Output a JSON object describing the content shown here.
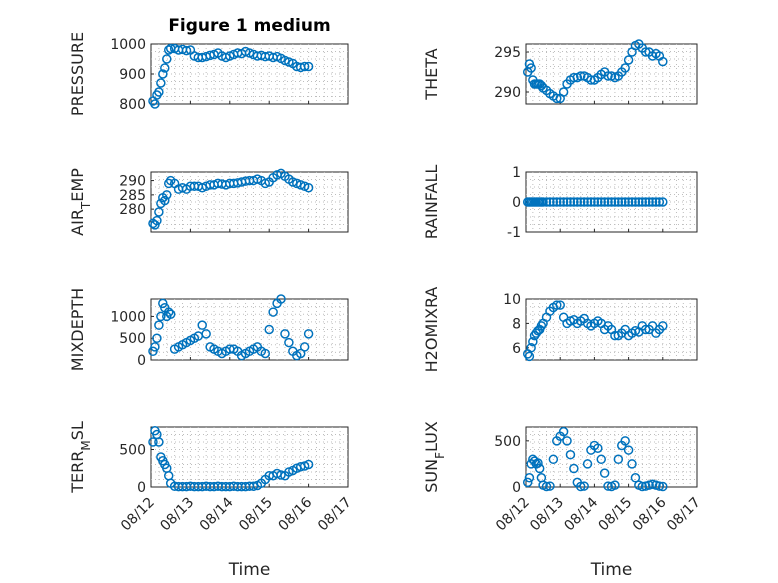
{
  "figure": {
    "title": "Figure 1 medium",
    "marker_color": "#0072BD",
    "grid": true
  },
  "chart_data": [
    {
      "type": "scatter",
      "title": "Figure 1 medium",
      "ylabel": "PRESSURE",
      "xlabel": "",
      "xlim": [
        0,
        5
      ],
      "ylim": [
        800,
        1000
      ],
      "xticks": [
        0,
        1,
        2,
        3,
        4,
        5
      ],
      "xticklabels": [],
      "yticks": [
        800,
        900,
        1000
      ],
      "yticklabels": [
        "800",
        "900",
        "1000"
      ],
      "x": [
        0.05,
        0.1,
        0.15,
        0.2,
        0.25,
        0.3,
        0.35,
        0.4,
        0.45,
        0.5,
        0.6,
        0.7,
        0.8,
        0.9,
        1.0,
        1.1,
        1.2,
        1.3,
        1.4,
        1.5,
        1.6,
        1.7,
        1.8,
        1.9,
        2.0,
        2.1,
        2.2,
        2.3,
        2.4,
        2.5,
        2.6,
        2.7,
        2.8,
        2.9,
        3.0,
        3.1,
        3.2,
        3.3,
        3.4,
        3.5,
        3.6,
        3.7,
        3.8,
        3.9,
        4.0
      ],
      "y": [
        810,
        800,
        830,
        840,
        870,
        900,
        920,
        950,
        980,
        985,
        985,
        980,
        982,
        978,
        980,
        960,
        955,
        955,
        958,
        962,
        965,
        970,
        960,
        955,
        960,
        965,
        970,
        968,
        975,
        970,
        965,
        960,
        962,
        958,
        960,
        955,
        958,
        952,
        945,
        940,
        935,
        925,
        922,
        925,
        925
      ]
    },
    {
      "type": "scatter",
      "title": "",
      "ylabel": "THETA",
      "xlabel": "",
      "xlim": [
        0,
        5
      ],
      "ylim": [
        288.5,
        296
      ],
      "xticks": [
        0,
        1,
        2,
        3,
        4,
        5
      ],
      "xticklabels": [],
      "yticks": [
        290,
        295
      ],
      "yticklabels": [
        "290",
        "295"
      ],
      "x": [
        0.05,
        0.1,
        0.15,
        0.2,
        0.25,
        0.3,
        0.35,
        0.4,
        0.45,
        0.5,
        0.6,
        0.7,
        0.8,
        0.9,
        1.0,
        1.1,
        1.2,
        1.3,
        1.4,
        1.5,
        1.6,
        1.7,
        1.8,
        1.9,
        2.0,
        2.1,
        2.2,
        2.3,
        2.4,
        2.5,
        2.6,
        2.7,
        2.8,
        2.9,
        3.0,
        3.1,
        3.2,
        3.3,
        3.4,
        3.5,
        3.6,
        3.7,
        3.8,
        3.9,
        4.0
      ],
      "y": [
        292.5,
        293.5,
        293,
        291.5,
        291,
        291,
        291,
        291,
        290.8,
        290.5,
        290.2,
        289.8,
        289.5,
        289.2,
        289.2,
        290,
        291,
        291.5,
        291.8,
        291.8,
        292,
        292,
        291.8,
        291.5,
        291.5,
        291.8,
        292.2,
        292.5,
        292,
        292,
        291.8,
        292,
        292.5,
        293,
        294,
        295,
        295.8,
        296,
        295.5,
        295,
        295,
        294.5,
        294.8,
        294.5,
        293.8
      ]
    },
    {
      "type": "scatter",
      "title": "",
      "ylabel": "AIR_TEMP",
      "xlabel": "",
      "xlim": [
        0,
        5
      ],
      "ylim": [
        272,
        293
      ],
      "xticks": [
        0,
        1,
        2,
        3,
        4,
        5
      ],
      "xticklabels": [],
      "yticks": [
        280,
        285,
        290
      ],
      "yticklabels": [
        "280",
        "285",
        "290"
      ],
      "x": [
        0.05,
        0.1,
        0.15,
        0.2,
        0.25,
        0.3,
        0.35,
        0.4,
        0.45,
        0.5,
        0.6,
        0.7,
        0.8,
        0.9,
        1.0,
        1.1,
        1.2,
        1.3,
        1.4,
        1.5,
        1.6,
        1.7,
        1.8,
        1.9,
        2.0,
        2.1,
        2.2,
        2.3,
        2.4,
        2.5,
        2.6,
        2.7,
        2.8,
        2.9,
        3.0,
        3.1,
        3.2,
        3.3,
        3.4,
        3.5,
        3.6,
        3.7,
        3.8,
        3.9,
        4.0
      ],
      "y": [
        275,
        274.5,
        276,
        279,
        282,
        284,
        283,
        285,
        289,
        290,
        289,
        287,
        287.5,
        287,
        288,
        288,
        288,
        287.5,
        288,
        288.5,
        288.5,
        289,
        288.8,
        288.5,
        289,
        289,
        289.2,
        289.5,
        289.8,
        290,
        290,
        290.5,
        290,
        289,
        289.5,
        291,
        292,
        292.5,
        291.5,
        290.5,
        289.5,
        289,
        288.5,
        288,
        287.5
      ]
    },
    {
      "type": "scatter",
      "title": "",
      "ylabel": "RAINFALL",
      "xlabel": "",
      "xlim": [
        0,
        5
      ],
      "ylim": [
        -1,
        1
      ],
      "xticks": [
        0,
        1,
        2,
        3,
        4,
        5
      ],
      "xticklabels": [],
      "yticks": [
        -1,
        0,
        1
      ],
      "yticklabels": [
        "-1",
        "0",
        "1"
      ],
      "x": [
        0.05,
        0.1,
        0.15,
        0.2,
        0.25,
        0.3,
        0.35,
        0.4,
        0.45,
        0.5,
        0.6,
        0.7,
        0.8,
        0.9,
        1.0,
        1.1,
        1.2,
        1.3,
        1.4,
        1.5,
        1.6,
        1.7,
        1.8,
        1.9,
        2.0,
        2.1,
        2.2,
        2.3,
        2.4,
        2.5,
        2.6,
        2.7,
        2.8,
        2.9,
        3.0,
        3.1,
        3.2,
        3.3,
        3.4,
        3.5,
        3.6,
        3.7,
        3.8,
        3.9,
        4.0
      ],
      "y": [
        0,
        0,
        0,
        0,
        0,
        0,
        0,
        0,
        0,
        0,
        0,
        0,
        0,
        0,
        0,
        0,
        0,
        0,
        0,
        0,
        0,
        0,
        0,
        0,
        0,
        0,
        0,
        0,
        0,
        0,
        0,
        0,
        0,
        0,
        0,
        0,
        0,
        0,
        0,
        0,
        0,
        0,
        0,
        0,
        0
      ]
    },
    {
      "type": "scatter",
      "title": "",
      "ylabel": "MIXDEPTH",
      "xlabel": "",
      "xlim": [
        0,
        5
      ],
      "ylim": [
        0,
        1400
      ],
      "xticks": [
        0,
        1,
        2,
        3,
        4,
        5
      ],
      "xticklabels": [],
      "yticks": [
        0,
        500,
        1000
      ],
      "yticklabels": [
        "0",
        "500",
        "1000"
      ],
      "x": [
        0.05,
        0.1,
        0.15,
        0.2,
        0.25,
        0.3,
        0.35,
        0.4,
        0.45,
        0.5,
        0.6,
        0.7,
        0.8,
        0.9,
        1.0,
        1.1,
        1.2,
        1.3,
        1.4,
        1.5,
        1.6,
        1.7,
        1.8,
        1.9,
        2.0,
        2.1,
        2.2,
        2.3,
        2.4,
        2.5,
        2.6,
        2.7,
        2.8,
        2.9,
        3.0,
        3.1,
        3.2,
        3.3,
        3.4,
        3.5,
        3.6,
        3.7,
        3.8,
        3.9,
        4.0
      ],
      "y": [
        200,
        300,
        500,
        800,
        1000,
        1300,
        1200,
        1000,
        1100,
        1050,
        250,
        300,
        350,
        400,
        450,
        500,
        550,
        800,
        600,
        300,
        250,
        200,
        150,
        200,
        250,
        250,
        200,
        100,
        150,
        200,
        250,
        300,
        200,
        150,
        700,
        1100,
        1300,
        1400,
        600,
        400,
        200,
        100,
        150,
        300,
        600
      ]
    },
    {
      "type": "scatter",
      "title": "",
      "ylabel": "H2OMIXRA",
      "xlabel": "",
      "xlim": [
        0,
        5
      ],
      "ylim": [
        5,
        10
      ],
      "xticks": [
        0,
        1,
        2,
        3,
        4,
        5
      ],
      "xticklabels": [],
      "yticks": [
        6,
        8,
        10
      ],
      "yticklabels": [
        "6",
        "8",
        "10"
      ],
      "x": [
        0.05,
        0.1,
        0.15,
        0.2,
        0.25,
        0.3,
        0.35,
        0.4,
        0.45,
        0.5,
        0.6,
        0.7,
        0.8,
        0.9,
        1.0,
        1.1,
        1.2,
        1.3,
        1.4,
        1.5,
        1.6,
        1.7,
        1.8,
        1.9,
        2.0,
        2.1,
        2.2,
        2.3,
        2.4,
        2.5,
        2.6,
        2.7,
        2.8,
        2.9,
        3.0,
        3.1,
        3.2,
        3.3,
        3.4,
        3.5,
        3.6,
        3.7,
        3.8,
        3.9,
        4.0
      ],
      "y": [
        5.5,
        5.3,
        6,
        6.5,
        7,
        7.2,
        7.4,
        7.5,
        7.8,
        8,
        8.5,
        9,
        9.3,
        9.5,
        9.5,
        8.5,
        8,
        8.2,
        8.3,
        8,
        8.2,
        8.4,
        8,
        7.8,
        8,
        8.2,
        8,
        7.5,
        7.8,
        7.5,
        7,
        7,
        7.2,
        7.5,
        7,
        7.2,
        7.4,
        7.3,
        7.8,
        7.5,
        7.5,
        7.8,
        7.2,
        7.5,
        7.8
      ]
    },
    {
      "type": "scatter",
      "title": "",
      "ylabel": "TERR_MSL",
      "xlabel": "Time",
      "xlim": [
        0,
        5
      ],
      "ylim": [
        0,
        800
      ],
      "xticks": [
        0,
        1,
        2,
        3,
        4,
        5
      ],
      "xticklabels": [
        "08/12",
        "08/13",
        "08/14",
        "08/15",
        "08/16",
        "08/17"
      ],
      "yticks": [
        0,
        500
      ],
      "yticklabels": [
        "0",
        "500"
      ],
      "x": [
        0.05,
        0.1,
        0.15,
        0.2,
        0.25,
        0.3,
        0.35,
        0.4,
        0.45,
        0.5,
        0.6,
        0.7,
        0.8,
        0.9,
        1.0,
        1.1,
        1.2,
        1.3,
        1.4,
        1.5,
        1.6,
        1.7,
        1.8,
        1.9,
        2.0,
        2.1,
        2.2,
        2.3,
        2.4,
        2.5,
        2.6,
        2.7,
        2.8,
        2.9,
        3.0,
        3.1,
        3.2,
        3.3,
        3.4,
        3.5,
        3.6,
        3.7,
        3.8,
        3.9,
        4.0
      ],
      "y": [
        600,
        750,
        700,
        600,
        400,
        350,
        300,
        250,
        150,
        50,
        10,
        5,
        5,
        5,
        10,
        5,
        5,
        5,
        10,
        5,
        5,
        10,
        5,
        5,
        5,
        10,
        5,
        5,
        5,
        10,
        10,
        20,
        50,
        100,
        150,
        150,
        180,
        160,
        150,
        200,
        220,
        250,
        270,
        280,
        300
      ]
    },
    {
      "type": "scatter",
      "title": "",
      "ylabel": "SUN_FLUX",
      "xlabel": "Time",
      "xlim": [
        0,
        5
      ],
      "ylim": [
        0,
        650
      ],
      "xticks": [
        0,
        1,
        2,
        3,
        4,
        5
      ],
      "xticklabels": [
        "08/12",
        "08/13",
        "08/14",
        "08/15",
        "08/16",
        "08/17"
      ],
      "yticks": [
        0,
        500
      ],
      "yticklabels": [
        "0",
        "500"
      ],
      "x": [
        0.05,
        0.1,
        0.15,
        0.2,
        0.25,
        0.3,
        0.35,
        0.4,
        0.45,
        0.5,
        0.6,
        0.7,
        0.8,
        0.9,
        1.0,
        1.1,
        1.2,
        1.3,
        1.4,
        1.5,
        1.6,
        1.7,
        1.8,
        1.9,
        2.0,
        2.1,
        2.2,
        2.3,
        2.4,
        2.5,
        2.6,
        2.7,
        2.8,
        2.9,
        3.0,
        3.1,
        3.2,
        3.3,
        3.4,
        3.5,
        3.6,
        3.7,
        3.8,
        3.9,
        4.0
      ],
      "y": [
        50,
        100,
        250,
        300,
        280,
        250,
        260,
        200,
        100,
        20,
        5,
        10,
        300,
        500,
        550,
        600,
        500,
        350,
        200,
        50,
        5,
        10,
        250,
        400,
        450,
        420,
        300,
        150,
        10,
        5,
        20,
        300,
        450,
        500,
        400,
        250,
        100,
        20,
        5,
        10,
        20,
        30,
        20,
        10,
        5
      ]
    }
  ]
}
